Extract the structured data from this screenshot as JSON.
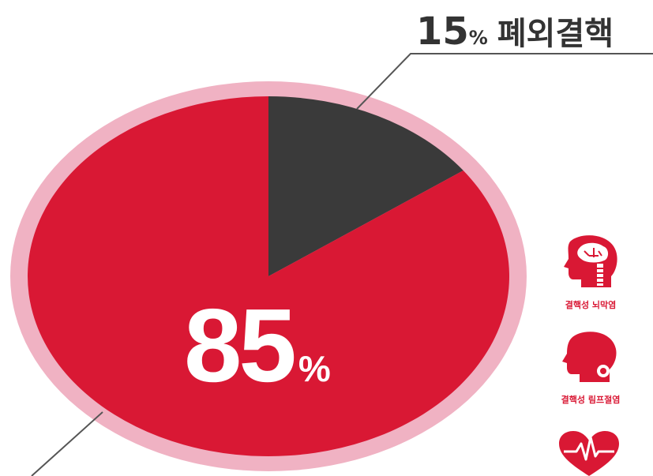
{
  "chart_data": {
    "type": "pie",
    "slices": [
      {
        "label": "폐외결핵",
        "value": 15,
        "color": "#3a3a3a"
      },
      {
        "label": "",
        "value": 85,
        "color": "#d91834"
      }
    ],
    "ring_color": "#f0b2c3",
    "callouts": {
      "small": {
        "value": "15",
        "unit": "%",
        "label": "폐외결핵"
      },
      "large": {
        "value": "85",
        "unit": "%"
      }
    }
  },
  "icons": [
    {
      "name": "brain-head-icon",
      "caption": "결핵성 뇌막염"
    },
    {
      "name": "head-lymph-icon",
      "caption": "결핵성 림프절염"
    },
    {
      "name": "heart-pulse-icon",
      "caption": ""
    }
  ],
  "colors": {
    "accent": "#d91834",
    "dark": "#3a3a3a",
    "ring": "#f0b2c3",
    "leader": "#555555"
  }
}
